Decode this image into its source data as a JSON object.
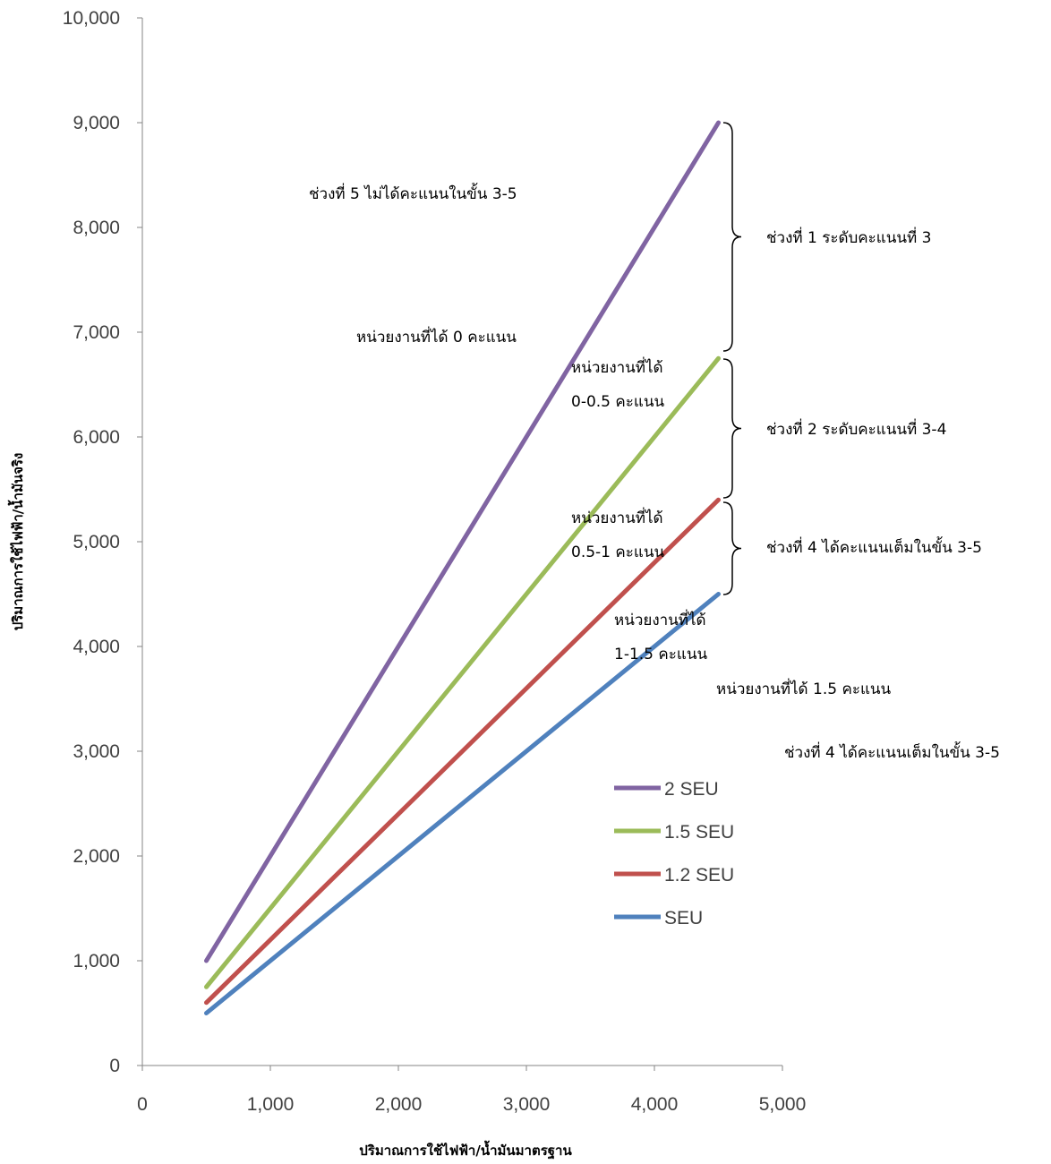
{
  "chart_data": {
    "type": "line",
    "xlabel": "ปริมาณการใช้ไฟฟ้า/น้ำมันมาตรฐาน",
    "ylabel": "ปริมาณการใช้ไฟฟ้า/น้ำมันจริง",
    "xlim": [
      0,
      5000
    ],
    "ylim": [
      0,
      10000
    ],
    "x_ticks": [
      "0",
      "1,000",
      "2,000",
      "3,000",
      "4,000",
      "5,000"
    ],
    "y_ticks": [
      "0",
      "1,000",
      "2,000",
      "3,000",
      "4,000",
      "5,000",
      "6,000",
      "7,000",
      "8,000",
      "9,000",
      "10,000"
    ],
    "grid": false,
    "legend_position": "right",
    "x": [
      500,
      4500
    ],
    "series": [
      {
        "name": "2 SEU",
        "values": [
          1000,
          9000
        ],
        "color": "#8064a2"
      },
      {
        "name": "1.5 SEU",
        "values": [
          750,
          6750
        ],
        "color": "#9bbb59"
      },
      {
        "name": "1.2 SEU",
        "values": [
          600,
          5400
        ],
        "color": "#c0504d"
      },
      {
        "name": "SEU",
        "values": [
          500,
          4500
        ],
        "color": "#4f81bd"
      }
    ],
    "annotations": [
      {
        "lines": [
          "ช่วงที่ 5 ไม่ได้คะแนนในขั้น 3-5"
        ]
      },
      {
        "lines": [
          "หน่วยงานที่ได้  0  คะแนน"
        ]
      },
      {
        "lines": [
          "หน่วยงานที่ได้",
          "0-0.5 คะแนน"
        ]
      },
      {
        "lines": [
          "หน่วยงานที่ได้",
          "0.5-1 คะแนน"
        ]
      },
      {
        "lines": [
          "หน่วยงานที่ได้",
          "1-1.5 คะแนน"
        ]
      },
      {
        "lines": [
          "หน่วยงานที่ได้ 1.5 คะแนน"
        ]
      },
      {
        "lines": [
          "ช่วงที่ 1 ระดับคะแนนที่ 3"
        ]
      },
      {
        "lines": [
          "ช่วงที่ 2 ระดับคะแนนที่ 3-4"
        ]
      },
      {
        "lines": [
          "ช่วงที่ 4 ได้คะแนนเต็มในขั้น 3-5"
        ]
      },
      {
        "lines": [
          "ช่วงที่ 4 ได้คะแนนเต็มในขั้น 3-5"
        ]
      }
    ]
  }
}
